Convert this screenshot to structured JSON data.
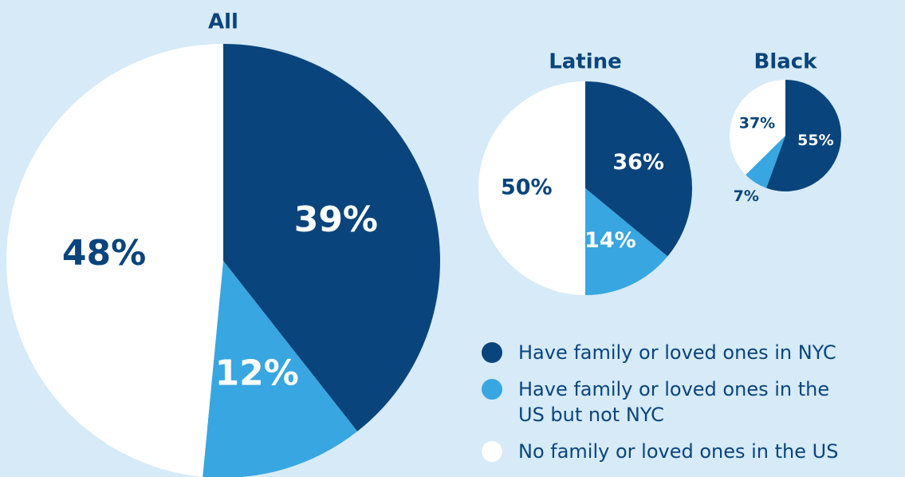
{
  "chart_data": [
    {
      "type": "pie",
      "title": "All",
      "categories": [
        "Have family or loved ones in NYC",
        "Have family or loved ones in the US but not NYC",
        "No family or loved ones in the US"
      ],
      "values": [
        39,
        12,
        48
      ],
      "value_labels": [
        "39%",
        "12%",
        "48%"
      ],
      "colors": [
        "#0a447c",
        "#38a6e0",
        "#ffffff"
      ]
    },
    {
      "type": "pie",
      "title": "Latine",
      "categories": [
        "Have family or loved ones in NYC",
        "Have family or loved ones in the US but not NYC",
        "No family or loved ones in the US"
      ],
      "values": [
        36,
        14,
        50
      ],
      "value_labels": [
        "36%",
        "14%",
        "50%"
      ],
      "colors": [
        "#0a447c",
        "#38a6e0",
        "#ffffff"
      ]
    },
    {
      "type": "pie",
      "title": "Black",
      "categories": [
        "Have family or loved ones in NYC",
        "Have family or loved ones in the US but not NYC",
        "No family or loved ones in the US"
      ],
      "values": [
        55,
        7,
        37
      ],
      "value_labels": [
        "55%",
        "7%",
        "37%"
      ],
      "colors": [
        "#0a447c",
        "#38a6e0",
        "#ffffff"
      ]
    }
  ]
}
